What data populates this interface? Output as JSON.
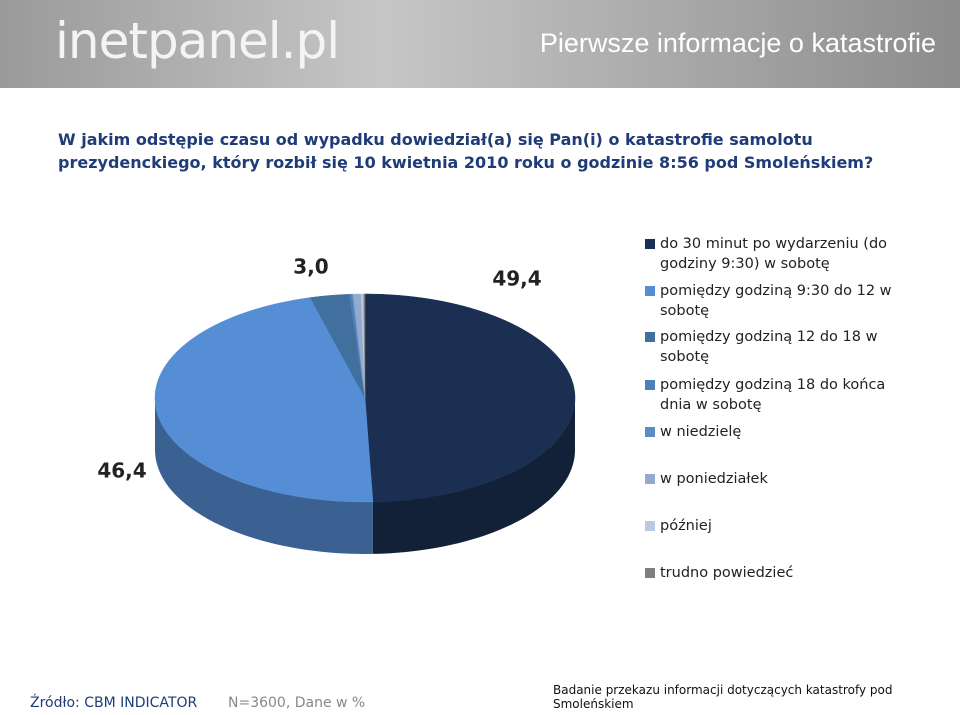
{
  "header": {
    "logo": "inetpanel.pl",
    "title": "Pierwsze informacje o katastrofie"
  },
  "chart_data": {
    "type": "pie",
    "question": "W jakim odstępie czasu od wypadku dowiedział(a) się Pan(i) o katastrofie samolotu prezydenckiego, który rozbił się 10 kwietnia 2010 roku o godzinie 8:56 pod Smoleńskiem?",
    "categories": [
      "do 30 minut po wydarzeniu (do godziny 9:30) w sobotę",
      "pomiędzy godziną 9:30 do 12 w sobotę",
      "pomiędzy godziną 12 do 18 w sobotę",
      "pomiędzy godziną 18 do końca dnia w sobotę",
      "w niedzielę",
      "w poniedziałek",
      "później",
      "trudno powiedzieć"
    ],
    "values": [
      49.4,
      46.4,
      3.0,
      0.2,
      0.1,
      0.6,
      0.2,
      0.1
    ],
    "value_labels": [
      "49,4",
      "46,4",
      "3,0",
      null,
      null,
      null,
      null,
      null
    ],
    "colors": [
      "#1a2f52",
      "#558ed5",
      "#41709f",
      "#4d7fb8",
      "#5d8bc4",
      "#93aace",
      "#b9c9e1",
      "#7f7f7f"
    ]
  },
  "footer": {
    "source": "Źródło: CBM INDICATOR",
    "sample": "N=3600, Dane w %",
    "study": "Badanie przekazu informacji dotyczących katastrofy pod Smoleńskiem"
  }
}
